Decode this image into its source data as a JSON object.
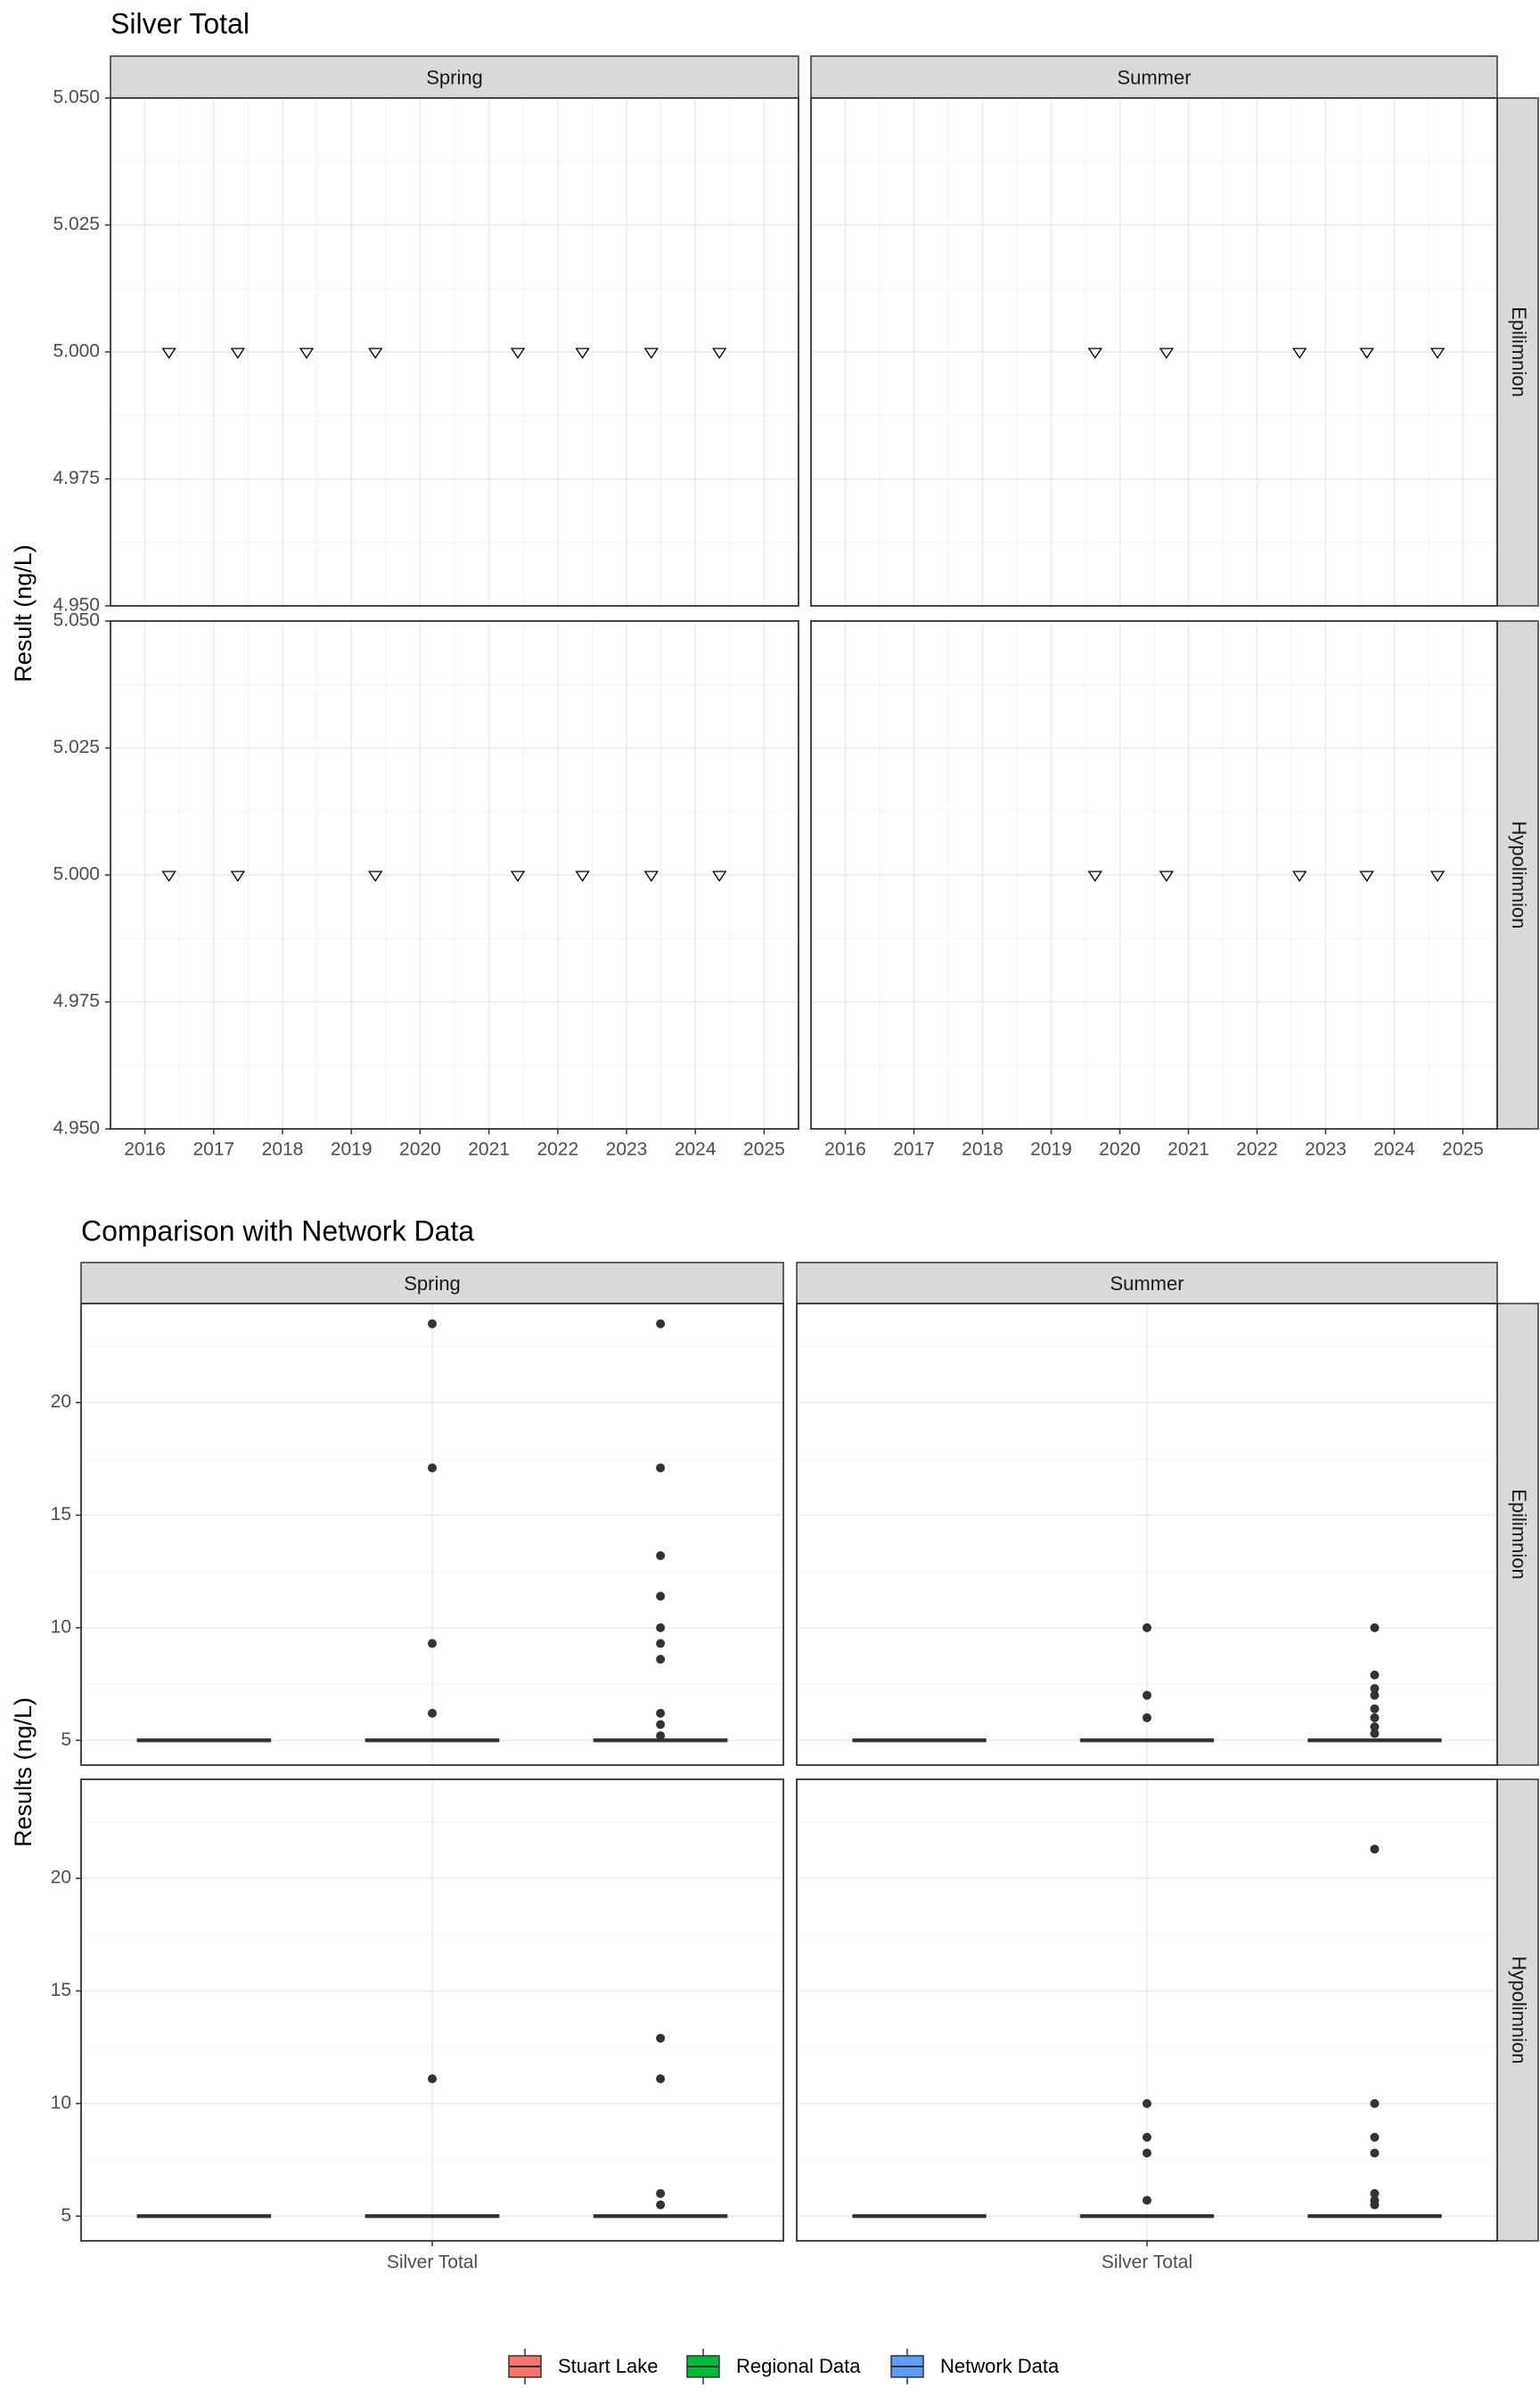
{
  "chart_data": [
    {
      "type": "scatter",
      "title": "Silver Total",
      "ylabel": "Result (ng/L)",
      "xlabel": "",
      "ylim": [
        4.95,
        5.05
      ],
      "yticks": [
        "4.950",
        "4.975",
        "5.000",
        "5.025",
        "5.050"
      ],
      "xlim": [
        2015.5,
        2025.5
      ],
      "xticks": [
        2016,
        2017,
        2018,
        2019,
        2020,
        2021,
        2022,
        2023,
        2024,
        2025
      ],
      "col_strips": [
        "Spring",
        "Summer"
      ],
      "row_strips": [
        "Epilimnion",
        "Hypolimnion"
      ],
      "marker": "open-triangle-down",
      "grid": true,
      "panels": [
        {
          "col": "Spring",
          "row": "Epilimnion",
          "x": [
            2016.35,
            2017.35,
            2018.35,
            2019.35,
            2021.42,
            2022.36,
            2023.36,
            2024.35
          ],
          "y": [
            5,
            5,
            5,
            5,
            5,
            5,
            5,
            5
          ]
        },
        {
          "col": "Summer",
          "row": "Epilimnion",
          "x": [
            2019.64,
            2020.68,
            2022.62,
            2023.6,
            2024.63
          ],
          "y": [
            5,
            5,
            5,
            5,
            5
          ]
        },
        {
          "col": "Spring",
          "row": "Hypolimnion",
          "x": [
            2016.35,
            2017.35,
            2019.35,
            2021.42,
            2022.36,
            2023.36,
            2024.35
          ],
          "y": [
            5,
            5,
            5,
            5,
            5,
            5,
            5
          ]
        },
        {
          "col": "Summer",
          "row": "Hypolimnion",
          "x": [
            2019.64,
            2020.68,
            2022.62,
            2023.6,
            2024.63
          ],
          "y": [
            5,
            5,
            5,
            5,
            5
          ]
        }
      ]
    },
    {
      "type": "box",
      "title": "Comparison with Network Data",
      "ylabel": "Results (ng/L)",
      "xlabel": "",
      "ylim": [
        3.9,
        24.4
      ],
      "yticks": [
        5,
        10,
        15,
        20
      ],
      "category": "Silver Total",
      "col_strips": [
        "Spring",
        "Summer"
      ],
      "row_strips": [
        "Epilimnion",
        "Hypolimnion"
      ],
      "series": [
        {
          "name": "Stuart Lake",
          "color": "#F8766D"
        },
        {
          "name": "Regional Data",
          "color": "#00BA38"
        },
        {
          "name": "Network Data",
          "color": "#619CFF"
        }
      ],
      "legend_position": "bottom",
      "grid": true,
      "panels": [
        {
          "col": "Spring",
          "row": "Epilimnion",
          "boxes": [
            {
              "series": "Stuart Lake",
              "median": 5,
              "outliers": []
            },
            {
              "series": "Regional Data",
              "median": 5,
              "outliers": [
                6.2,
                9.3,
                17.1,
                23.5
              ]
            },
            {
              "series": "Network Data",
              "median": 5,
              "outliers": [
                5.2,
                5.7,
                6.2,
                8.6,
                9.3,
                10,
                11.4,
                13.2,
                17.1,
                23.5
              ]
            }
          ]
        },
        {
          "col": "Summer",
          "row": "Epilimnion",
          "boxes": [
            {
              "series": "Stuart Lake",
              "median": 5,
              "outliers": []
            },
            {
              "series": "Regional Data",
              "median": 5,
              "outliers": [
                6,
                7,
                10
              ]
            },
            {
              "series": "Network Data",
              "median": 5,
              "outliers": [
                5.3,
                5.6,
                6,
                6.4,
                7,
                7.3,
                7.9,
                10
              ]
            }
          ]
        },
        {
          "col": "Spring",
          "row": "Hypolimnion",
          "boxes": [
            {
              "series": "Stuart Lake",
              "median": 5,
              "outliers": []
            },
            {
              "series": "Regional Data",
              "median": 5,
              "outliers": [
                11.1
              ]
            },
            {
              "series": "Network Data",
              "median": 5,
              "outliers": [
                5.5,
                6,
                11.1,
                12.9
              ]
            }
          ]
        },
        {
          "col": "Summer",
          "row": "Hypolimnion",
          "boxes": [
            {
              "series": "Stuart Lake",
              "median": 5,
              "outliers": []
            },
            {
              "series": "Regional Data",
              "median": 5,
              "outliers": [
                5.7,
                7.8,
                8.5,
                10
              ]
            },
            {
              "series": "Network Data",
              "median": 5,
              "outliers": [
                5.5,
                5.7,
                6,
                7.8,
                8.5,
                10,
                21.3
              ]
            }
          ]
        }
      ]
    }
  ]
}
